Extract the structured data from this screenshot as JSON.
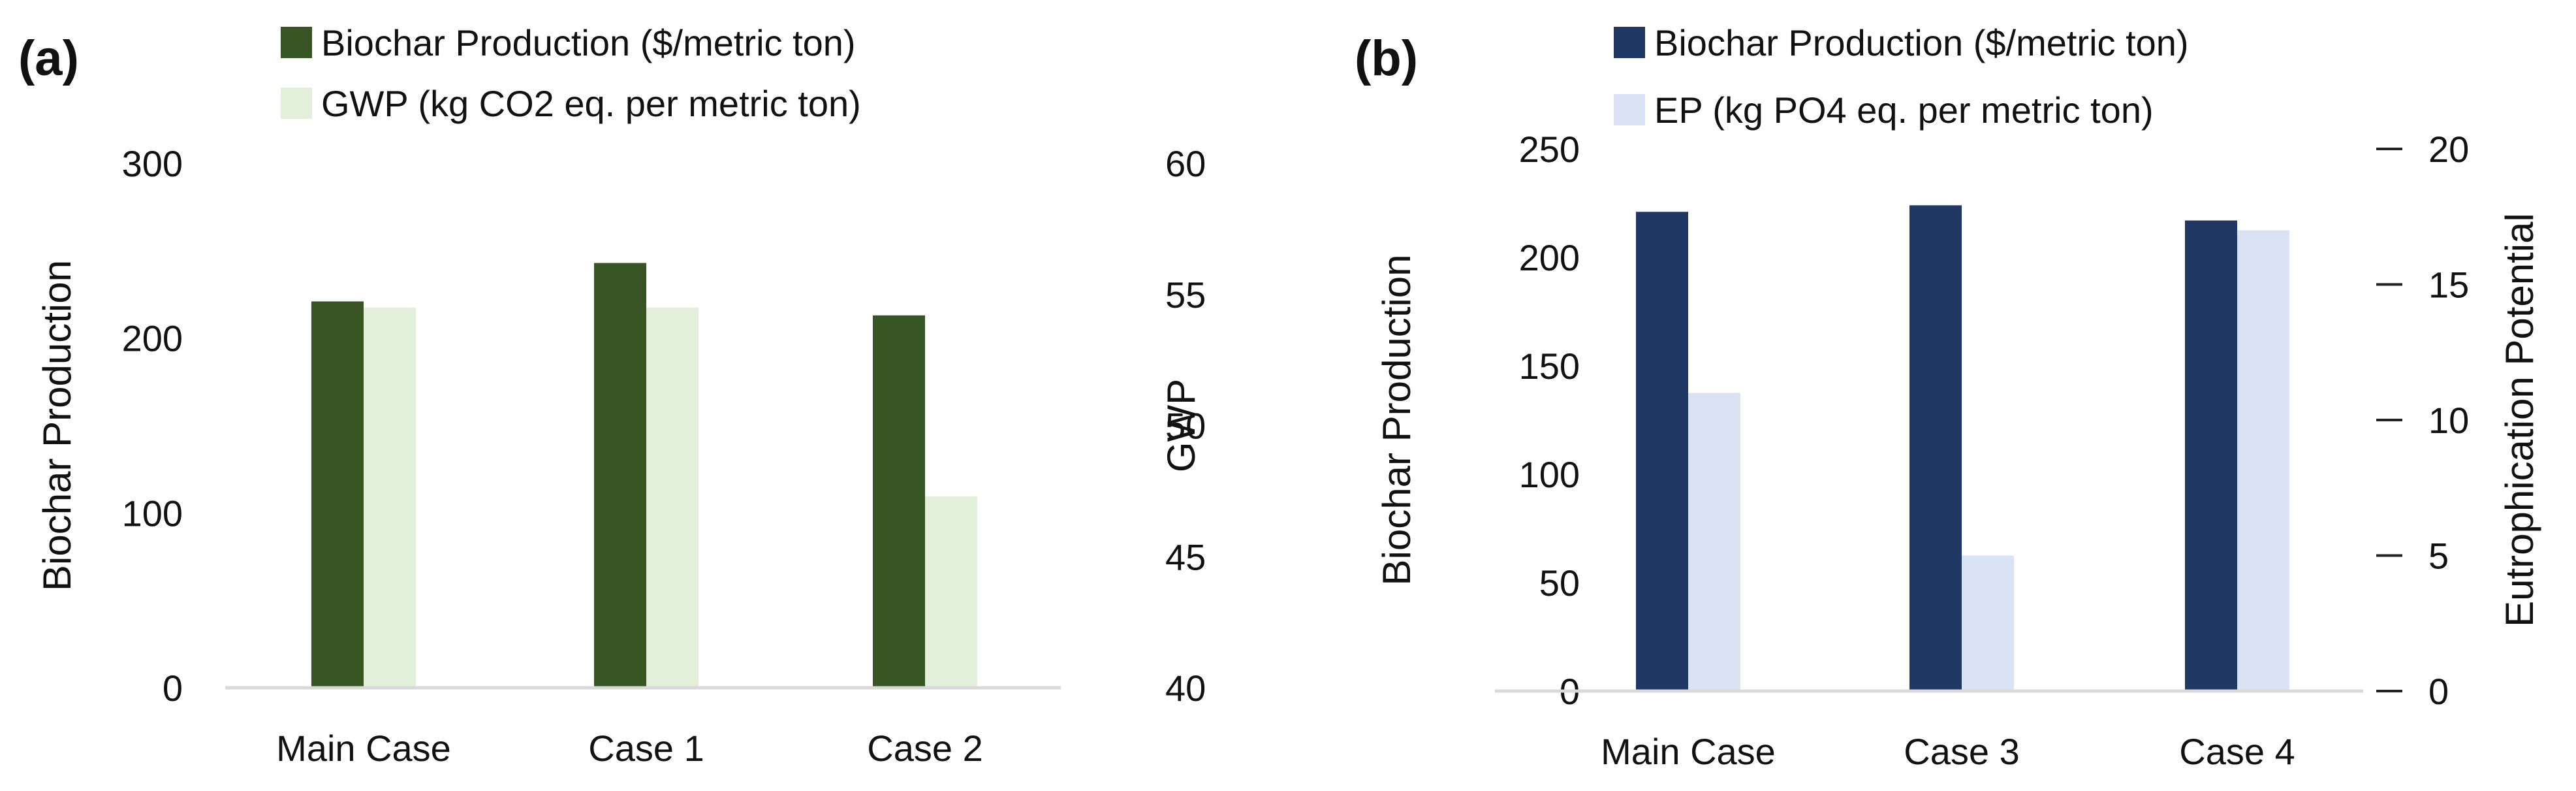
{
  "chart_data": [
    {
      "type": "bar",
      "panel_label": "(a)",
      "categories": [
        "Main Case",
        "Case 1",
        "Case 2"
      ],
      "series": [
        {
          "name": "Biochar Production ($/metric ton)",
          "axis": "left",
          "color": "#375623",
          "values": [
            221,
            243,
            213
          ]
        },
        {
          "name": "GWP (kg CO2 eq. per metric ton)",
          "axis": "right",
          "color": "#e2efda",
          "values": [
            54.5,
            54.5,
            47.3
          ]
        }
      ],
      "ylabel": "Biochar Production",
      "ylabel_right": "GWP",
      "ylim": [
        0,
        300
      ],
      "yticks": [
        "0",
        "100",
        "200",
        "300"
      ],
      "ylim_right": [
        40,
        60
      ],
      "yticks_right": [
        "40",
        "45",
        "50",
        "55",
        "60"
      ],
      "right_tick_marks": false,
      "legend": "top"
    },
    {
      "type": "bar",
      "panel_label": "(b)",
      "categories": [
        "Main Case",
        "Case 3",
        "Case 4"
      ],
      "series": [
        {
          "name": "Biochar Production ($/metric ton)",
          "axis": "left",
          "color": "#203864",
          "values": [
            221,
            224,
            217
          ]
        },
        {
          "name": "EP (kg PO4 eq. per metric ton)",
          "axis": "right",
          "color": "#dae3f3",
          "values": [
            11,
            5,
            17
          ]
        }
      ],
      "ylabel": "Biochar Production",
      "ylabel_right": "Eutrophication Potential",
      "ylim": [
        0,
        250
      ],
      "yticks": [
        "0",
        "50",
        "100",
        "150",
        "200",
        "250"
      ],
      "ylim_right": [
        0,
        20
      ],
      "yticks_right": [
        "0",
        "5",
        "10",
        "15",
        "20"
      ],
      "right_tick_marks": true,
      "legend": "top"
    }
  ]
}
